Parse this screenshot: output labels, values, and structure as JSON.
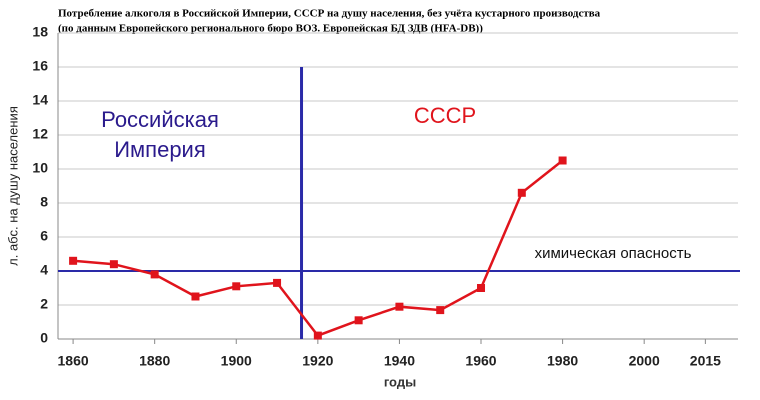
{
  "chart_data": {
    "type": "line",
    "title": [
      "Потребление алкоголя в Российской Империи, СССР на душу населения, без учёта кустарного производства",
      "(по данным Европейского регионального бюро ВОЗ. Европейская БД ЗДВ (HFA-DB))"
    ],
    "x_label": "годы",
    "y_label": "л. абс. на душу населения",
    "x": [
      1860,
      1870,
      1880,
      1890,
      1900,
      1910,
      1920,
      1930,
      1940,
      1950,
      1960,
      1970,
      1980
    ],
    "series": [
      {
        "name": "потребление",
        "color": "#e0141c",
        "values": [
          4.6,
          4.4,
          3.8,
          2.5,
          3.1,
          3.3,
          0.2,
          1.1,
          1.9,
          1.7,
          3.0,
          8.6,
          10.5
        ]
      }
    ],
    "xlim": [
      1856.3,
      2023
    ],
    "xticks": [
      1860,
      1880,
      1900,
      1920,
      1940,
      1960,
      1980,
      2000,
      2015
    ],
    "ylim": [
      0,
      18
    ],
    "yticks": [
      0,
      2,
      4,
      6,
      8,
      10,
      12,
      14,
      16,
      18
    ],
    "grid": true,
    "annotations": [
      {
        "text": [
          "Российская",
          "Империя"
        ],
        "color": "#2a1a8c"
      },
      {
        "text": "СССР",
        "color": "#e0141c"
      },
      {
        "text": "химическая опасность",
        "color": "#111"
      }
    ],
    "threshold": {
      "value": 4,
      "color": "#2a2aa8"
    },
    "divider": {
      "value": 1916,
      "color": "#2a2aa8"
    }
  }
}
